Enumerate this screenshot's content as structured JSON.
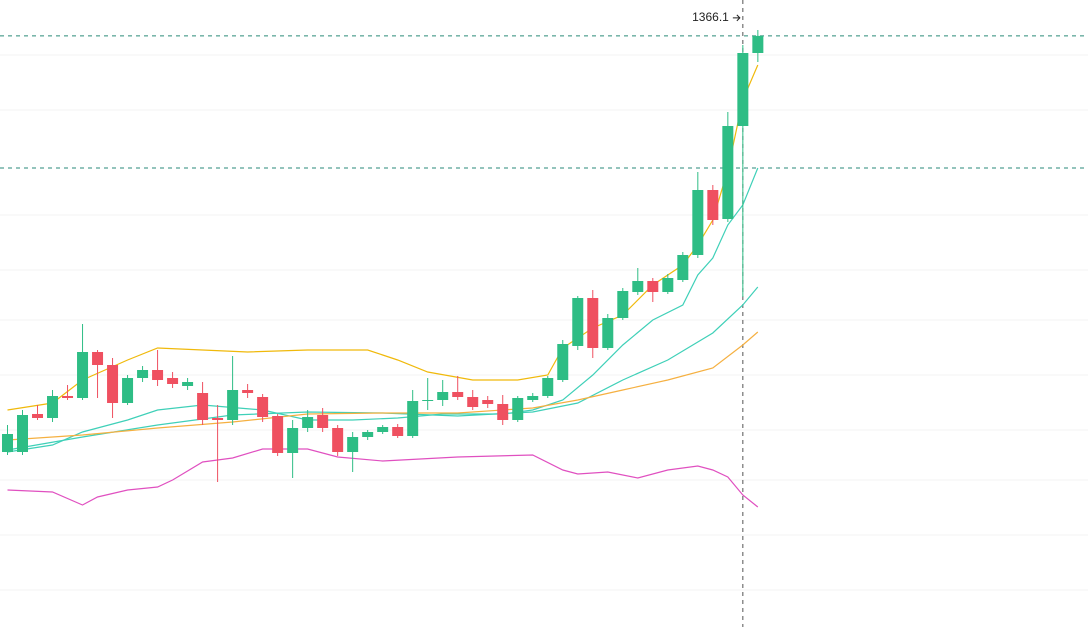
{
  "chart_data": {
    "type": "candlestick",
    "up_color": "#2ebd85",
    "down_color": "#ef5060",
    "xlim": [
      -0.5,
      72
    ],
    "ylim": [
      775,
      1402
    ],
    "x": [
      0,
      1,
      2,
      3,
      4,
      5,
      6,
      7,
      8,
      9,
      10,
      11,
      12,
      13,
      14,
      15,
      16,
      17,
      18,
      19,
      20,
      21,
      22,
      23,
      24,
      25,
      26,
      27,
      28,
      29,
      30,
      31,
      32,
      33,
      34,
      35,
      36,
      37,
      38,
      39,
      40,
      41,
      42,
      43,
      44,
      45,
      46,
      47,
      48,
      49,
      50
    ],
    "open": [
      950,
      950,
      988,
      984,
      1006,
      1004,
      1050,
      1037,
      999,
      1024,
      1032,
      1024,
      1016,
      1009,
      984,
      982,
      1012,
      1005,
      986,
      949,
      974,
      987,
      974,
      950,
      965,
      970,
      975,
      966,
      1001,
      1002,
      1010,
      1005,
      1002,
      998,
      982,
      1002,
      1006,
      1022,
      1056,
      1104,
      1054,
      1084,
      1110,
      1121,
      1110,
      1122,
      1147,
      1212,
      1183,
      1276,
      1349
    ],
    "high": [
      977,
      992,
      997,
      1012,
      1017,
      1078,
      1052,
      1044,
      1027,
      1036,
      1052,
      1030,
      1024,
      1020,
      997,
      1046,
      1018,
      1008,
      988,
      982,
      992,
      994,
      977,
      970,
      972,
      977,
      978,
      1012,
      1024,
      1022,
      1026,
      1012,
      1006,
      1007,
      1006,
      1009,
      1026,
      1062,
      1106,
      1112,
      1088,
      1114,
      1134,
      1124,
      1128,
      1150,
      1230,
      1217,
      1290,
      1357,
      1372
    ],
    "low": [
      947,
      947,
      982,
      980,
      1002,
      1002,
      1004,
      984,
      997,
      1020,
      1016,
      1014,
      1012,
      977,
      920,
      977,
      1004,
      980,
      946,
      924,
      970,
      970,
      946,
      930,
      962,
      968,
      964,
      964,
      992,
      996,
      1002,
      992,
      994,
      977,
      980,
      1000,
      1004,
      1020,
      1052,
      1044,
      1052,
      1082,
      1107,
      1100,
      1108,
      1120,
      1144,
      1177,
      1180,
      1105,
      1340
    ],
    "close": [
      968,
      987,
      984,
      1006,
      1004,
      1050,
      1037,
      999,
      1024,
      1032,
      1022,
      1018,
      1020,
      982,
      982,
      1012,
      1009,
      985,
      949,
      974,
      985,
      974,
      950,
      965,
      970,
      975,
      966,
      1001,
      1002,
      1010,
      1005,
      995,
      998,
      982,
      1004,
      1006,
      1024,
      1058,
      1104,
      1054,
      1084,
      1111,
      1121,
      1110,
      1124,
      1147,
      1212,
      1182,
      1276,
      1349,
      1366.1
    ],
    "overlays": [
      {
        "color": "#f0b90b",
        "x": [
          0,
          3,
          5,
          8,
          10,
          13,
          16,
          20,
          24,
          26,
          28,
          31,
          34,
          36,
          37,
          39,
          41,
          43,
          45,
          46,
          47,
          48,
          49,
          50
        ],
        "values": [
          992,
          999,
          1022,
          1042,
          1054,
          1052,
          1050,
          1052,
          1052,
          1042,
          1030,
          1022,
          1022,
          1027,
          1054,
          1074,
          1087,
          1117,
          1137,
          1157,
          1182,
          1232,
          1302,
          1337
        ]
      },
      {
        "color": "#3fd0b8",
        "x": [
          0,
          3,
          5,
          8,
          10,
          13,
          17,
          20,
          23,
          26,
          29,
          33,
          35,
          37,
          39,
          41,
          43,
          45,
          46,
          47,
          48,
          49,
          50
        ],
        "values": [
          950,
          957,
          970,
          982,
          992,
          997,
          992,
          982,
          982,
          984,
          988,
          988,
          992,
          1002,
          1027,
          1057,
          1082,
          1097,
          1127,
          1144,
          1177,
          1197,
          1234
        ]
      },
      {
        "color": "#3fd0b8",
        "x": [
          0,
          5,
          10,
          15,
          20,
          25,
          30,
          35,
          38,
          41,
          44,
          47,
          49,
          50
        ],
        "values": [
          952,
          965,
          977,
          987,
          990,
          989,
          986,
          990,
          999,
          1022,
          1042,
          1069,
          1097,
          1115
        ]
      },
      {
        "color": "#f5b041",
        "x": [
          0,
          5,
          10,
          15,
          20,
          25,
          30,
          35,
          38,
          41,
          44,
          47,
          49,
          50
        ],
        "values": [
          962,
          967,
          974,
          980,
          988,
          989,
          989,
          994,
          1002,
          1012,
          1022,
          1034,
          1057,
          1070
        ]
      },
      {
        "color": "#e050c0",
        "x": [
          0,
          3,
          5,
          6,
          8,
          10,
          11,
          13,
          15,
          17,
          20,
          22,
          25,
          30,
          35,
          37,
          38,
          40,
          42,
          44,
          46,
          47,
          48,
          49,
          50
        ],
        "values": [
          912,
          910,
          897,
          905,
          912,
          915,
          922,
          940,
          944,
          953,
          953,
          945,
          941,
          945,
          947,
          932,
          928,
          930,
          924,
          932,
          936,
          932,
          925,
          907,
          895
        ]
      }
    ],
    "last_price": 1366.1,
    "crosshair": {
      "x": 49,
      "y": 1234
    }
  }
}
